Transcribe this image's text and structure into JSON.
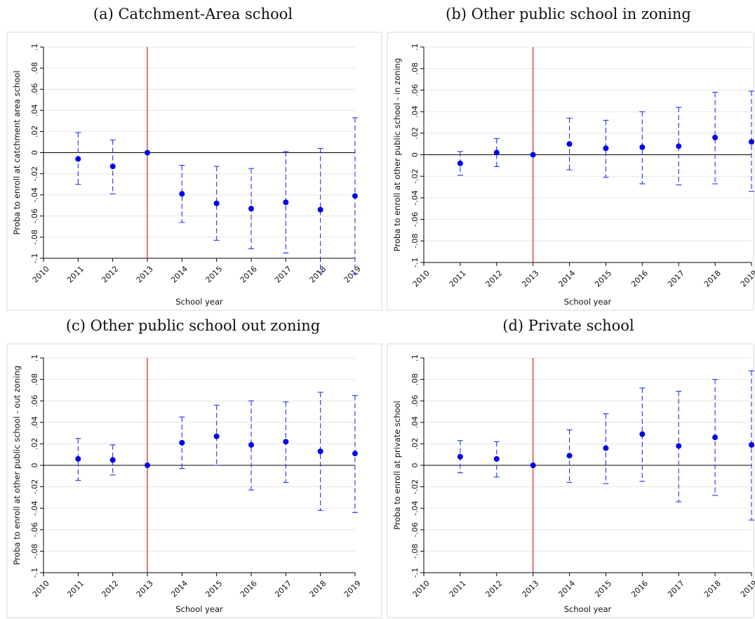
{
  "colors": {
    "marker": "#0000ee",
    "ci_line": "#2233ee",
    "event_line": "#d62020",
    "zero_line": "#000000",
    "grid": "#e6e6e6",
    "frame": "#d9d9d9"
  },
  "titles": {
    "a": "(a) Catchment-Area school",
    "b": "(b) Other public school in zoning",
    "c": "(c) Other public school out zoning",
    "d": "(d) Private school"
  },
  "chart_data": [
    {
      "id": "a",
      "type": "scatter",
      "error_bars": "dashed",
      "xlabel": "School year",
      "ylabel": "Proba to enroll at catchment area school",
      "xlim": [
        2010,
        2019
      ],
      "ylim": [
        -0.1,
        0.1
      ],
      "event_year": 2013,
      "grid": true,
      "x_ticks": [
        "2010",
        "2011",
        "2012",
        "2013",
        "2014",
        "2015",
        "2016",
        "2017",
        "2018",
        "2019"
      ],
      "y_ticks": [
        "-.1",
        "-.08",
        "-.06",
        "-.04",
        "-.02",
        "0",
        ".02",
        ".04",
        ".06",
        ".08",
        ".1"
      ],
      "y_tick_values": [
        -0.1,
        -0.08,
        -0.06,
        -0.04,
        -0.02,
        0,
        0.02,
        0.04,
        0.06,
        0.08,
        0.1
      ],
      "points": [
        {
          "year": 2011,
          "estimate": -0.006,
          "lo": -0.03,
          "hi": 0.019
        },
        {
          "year": 2012,
          "estimate": -0.013,
          "lo": -0.039,
          "hi": 0.012
        },
        {
          "year": 2013,
          "estimate": 0.0,
          "lo": 0.0,
          "hi": 0.0
        },
        {
          "year": 2014,
          "estimate": -0.039,
          "lo": -0.066,
          "hi": -0.012
        },
        {
          "year": 2015,
          "estimate": -0.048,
          "lo": -0.083,
          "hi": -0.013
        },
        {
          "year": 2016,
          "estimate": -0.053,
          "lo": -0.091,
          "hi": -0.015
        },
        {
          "year": 2017,
          "estimate": -0.047,
          "lo": -0.095,
          "hi": 0.001
        },
        {
          "year": 2018,
          "estimate": -0.054,
          "lo": -0.113,
          "hi": 0.004
        },
        {
          "year": 2019,
          "estimate": -0.041,
          "lo": -0.115,
          "hi": 0.033
        }
      ]
    },
    {
      "id": "b",
      "type": "scatter",
      "error_bars": "dashed",
      "xlabel": "School year",
      "ylabel": "Proba to enroll at other public school - in zoning",
      "xlim": [
        2010,
        2019
      ],
      "ylim": [
        -0.1,
        0.1
      ],
      "event_year": 2013,
      "grid": true,
      "x_ticks": [
        "2010",
        "2011",
        "2012",
        "2013",
        "2014",
        "2015",
        "2016",
        "2017",
        "2018",
        "2019"
      ],
      "y_ticks": [
        "-.1",
        "-.08",
        "-.06",
        "-.04",
        "-.02",
        "0",
        ".02",
        ".04",
        ".06",
        ".08",
        ".1"
      ],
      "y_tick_values": [
        -0.1,
        -0.08,
        -0.06,
        -0.04,
        -0.02,
        0,
        0.02,
        0.04,
        0.06,
        0.08,
        0.1
      ],
      "points": [
        {
          "year": 2011,
          "estimate": -0.008,
          "lo": -0.019,
          "hi": 0.003
        },
        {
          "year": 2012,
          "estimate": 0.002,
          "lo": -0.011,
          "hi": 0.015
        },
        {
          "year": 2013,
          "estimate": 0.0,
          "lo": 0.0,
          "hi": 0.0
        },
        {
          "year": 2014,
          "estimate": 0.01,
          "lo": -0.014,
          "hi": 0.034
        },
        {
          "year": 2015,
          "estimate": 0.006,
          "lo": -0.021,
          "hi": 0.032
        },
        {
          "year": 2016,
          "estimate": 0.007,
          "lo": -0.027,
          "hi": 0.04
        },
        {
          "year": 2017,
          "estimate": 0.008,
          "lo": -0.028,
          "hi": 0.044
        },
        {
          "year": 2018,
          "estimate": 0.016,
          "lo": -0.027,
          "hi": 0.058
        },
        {
          "year": 2019,
          "estimate": 0.012,
          "lo": -0.034,
          "hi": 0.059
        }
      ]
    },
    {
      "id": "c",
      "type": "scatter",
      "error_bars": "dashed",
      "xlabel": "School year",
      "ylabel": "Proba to enroll at other public school - out zoning",
      "xlim": [
        2010,
        2019
      ],
      "ylim": [
        -0.1,
        0.1
      ],
      "event_year": 2013,
      "grid": true,
      "x_ticks": [
        "2010",
        "2011",
        "2012",
        "2013",
        "2014",
        "2015",
        "2016",
        "2017",
        "2018",
        "2019"
      ],
      "y_ticks": [
        "-.1",
        "-.08",
        "-.06",
        "-.04",
        "-.02",
        "0",
        ".02",
        ".04",
        ".06",
        ".08",
        ".1"
      ],
      "y_tick_values": [
        -0.1,
        -0.08,
        -0.06,
        -0.04,
        -0.02,
        0,
        0.02,
        0.04,
        0.06,
        0.08,
        0.1
      ],
      "points": [
        {
          "year": 2011,
          "estimate": 0.006,
          "lo": -0.014,
          "hi": 0.025
        },
        {
          "year": 2012,
          "estimate": 0.005,
          "lo": -0.009,
          "hi": 0.019
        },
        {
          "year": 2013,
          "estimate": 0.0,
          "lo": 0.0,
          "hi": 0.0
        },
        {
          "year": 2014,
          "estimate": 0.021,
          "lo": -0.003,
          "hi": 0.045
        },
        {
          "year": 2015,
          "estimate": 0.027,
          "lo": 0.0,
          "hi": 0.056
        },
        {
          "year": 2016,
          "estimate": 0.019,
          "lo": -0.023,
          "hi": 0.06
        },
        {
          "year": 2017,
          "estimate": 0.022,
          "lo": -0.016,
          "hi": 0.059
        },
        {
          "year": 2018,
          "estimate": 0.013,
          "lo": -0.042,
          "hi": 0.068
        },
        {
          "year": 2019,
          "estimate": 0.011,
          "lo": -0.044,
          "hi": 0.065
        }
      ]
    },
    {
      "id": "d",
      "type": "scatter",
      "error_bars": "dashed",
      "xlabel": "School year",
      "ylabel": "Proba to enroll at private school",
      "xlim": [
        2010,
        2019
      ],
      "ylim": [
        -0.1,
        0.1
      ],
      "event_year": 2013,
      "grid": true,
      "x_ticks": [
        "2010",
        "2011",
        "2012",
        "2013",
        "2014",
        "2015",
        "2016",
        "2017",
        "2018",
        "2019"
      ],
      "y_ticks": [
        "-.1",
        "-.08",
        "-.06",
        "-.04",
        "-.02",
        "0",
        ".02",
        ".04",
        ".06",
        ".08",
        ".1"
      ],
      "y_tick_values": [
        -0.1,
        -0.08,
        -0.06,
        -0.04,
        -0.02,
        0,
        0.02,
        0.04,
        0.06,
        0.08,
        0.1
      ],
      "points": [
        {
          "year": 2011,
          "estimate": 0.008,
          "lo": -0.007,
          "hi": 0.023
        },
        {
          "year": 2012,
          "estimate": 0.006,
          "lo": -0.011,
          "hi": 0.022
        },
        {
          "year": 2013,
          "estimate": 0.0,
          "lo": 0.0,
          "hi": 0.0
        },
        {
          "year": 2014,
          "estimate": 0.009,
          "lo": -0.016,
          "hi": 0.033
        },
        {
          "year": 2015,
          "estimate": 0.016,
          "lo": -0.017,
          "hi": 0.048
        },
        {
          "year": 2016,
          "estimate": 0.029,
          "lo": -0.015,
          "hi": 0.072
        },
        {
          "year": 2017,
          "estimate": 0.018,
          "lo": -0.034,
          "hi": 0.069
        },
        {
          "year": 2018,
          "estimate": 0.026,
          "lo": -0.028,
          "hi": 0.08
        },
        {
          "year": 2019,
          "estimate": 0.019,
          "lo": -0.051,
          "hi": 0.088
        }
      ]
    }
  ]
}
